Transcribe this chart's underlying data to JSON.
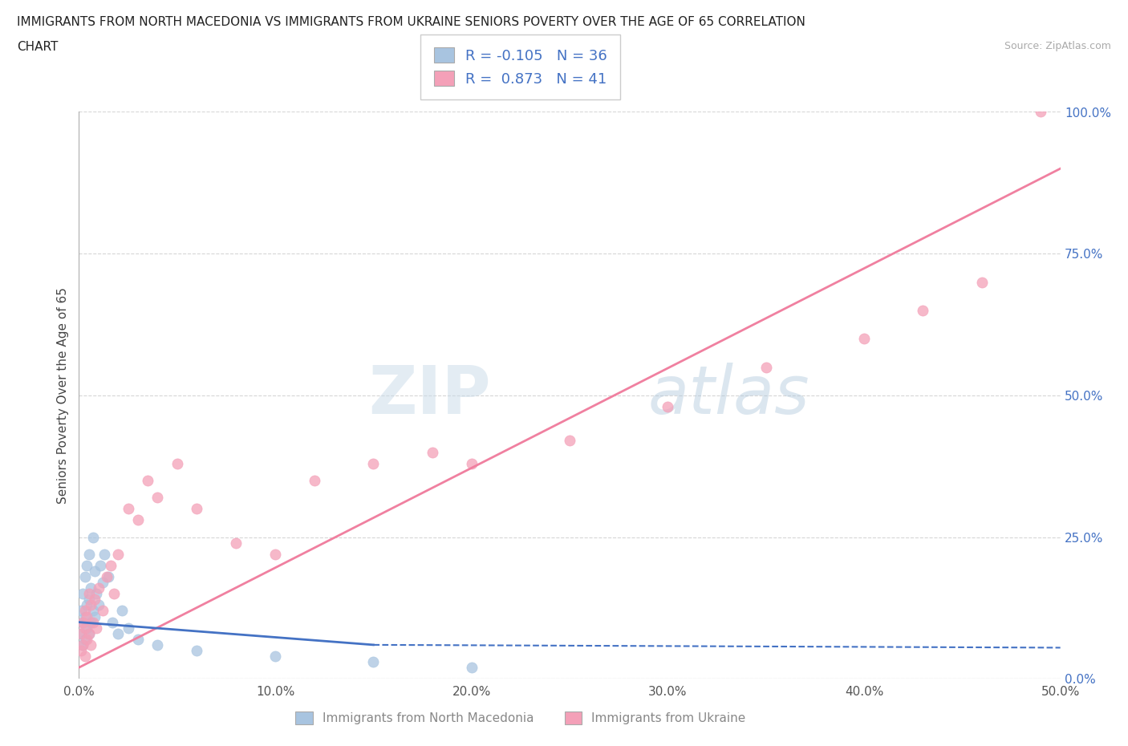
{
  "title_line1": "IMMIGRANTS FROM NORTH MACEDONIA VS IMMIGRANTS FROM UKRAINE SENIORS POVERTY OVER THE AGE OF 65 CORRELATION",
  "title_line2": "CHART",
  "source_text": "Source: ZipAtlas.com",
  "ylabel": "Seniors Poverty Over the Age of 65",
  "xlabel_mac": "Immigrants from North Macedonia",
  "xlabel_ukr": "Immigrants from Ukraine",
  "watermark_zip": "ZIP",
  "watermark_atlas": "atlas",
  "legend_mac_R": "-0.105",
  "legend_mac_N": "36",
  "legend_ukr_R": "0.873",
  "legend_ukr_N": "41",
  "mac_color": "#a8c4e0",
  "ukr_color": "#f4a0b8",
  "mac_line_color": "#4472c4",
  "ukr_line_color": "#f080a0",
  "label_color": "#4472c4",
  "background_color": "#ffffff",
  "grid_color": "#cccccc",
  "xlim": [
    0.0,
    0.5
  ],
  "ylim": [
    0.0,
    1.0
  ],
  "xticks": [
    0.0,
    0.1,
    0.2,
    0.3,
    0.4,
    0.5
  ],
  "yticks": [
    0.0,
    0.25,
    0.5,
    0.75,
    1.0
  ],
  "mac_scatter_x": [
    0.001,
    0.001,
    0.002,
    0.002,
    0.002,
    0.003,
    0.003,
    0.003,
    0.004,
    0.004,
    0.004,
    0.005,
    0.005,
    0.005,
    0.006,
    0.006,
    0.007,
    0.007,
    0.008,
    0.008,
    0.009,
    0.01,
    0.011,
    0.012,
    0.013,
    0.015,
    0.017,
    0.02,
    0.022,
    0.025,
    0.03,
    0.04,
    0.06,
    0.1,
    0.15,
    0.2
  ],
  "mac_scatter_y": [
    0.08,
    0.12,
    0.06,
    0.1,
    0.15,
    0.07,
    0.11,
    0.18,
    0.09,
    0.13,
    0.2,
    0.08,
    0.14,
    0.22,
    0.1,
    0.16,
    0.12,
    0.25,
    0.11,
    0.19,
    0.15,
    0.13,
    0.2,
    0.17,
    0.22,
    0.18,
    0.1,
    0.08,
    0.12,
    0.09,
    0.07,
    0.06,
    0.05,
    0.04,
    0.03,
    0.02
  ],
  "ukr_scatter_x": [
    0.001,
    0.001,
    0.002,
    0.002,
    0.003,
    0.003,
    0.003,
    0.004,
    0.004,
    0.005,
    0.005,
    0.006,
    0.006,
    0.007,
    0.008,
    0.009,
    0.01,
    0.012,
    0.014,
    0.016,
    0.018,
    0.02,
    0.025,
    0.03,
    0.035,
    0.04,
    0.05,
    0.06,
    0.08,
    0.1,
    0.12,
    0.15,
    0.18,
    0.2,
    0.25,
    0.3,
    0.35,
    0.4,
    0.43,
    0.46,
    0.49
  ],
  "ukr_scatter_y": [
    0.05,
    0.08,
    0.06,
    0.1,
    0.04,
    0.09,
    0.12,
    0.07,
    0.11,
    0.08,
    0.15,
    0.06,
    0.13,
    0.1,
    0.14,
    0.09,
    0.16,
    0.12,
    0.18,
    0.2,
    0.15,
    0.22,
    0.3,
    0.28,
    0.35,
    0.32,
    0.38,
    0.3,
    0.24,
    0.22,
    0.35,
    0.38,
    0.4,
    0.38,
    0.42,
    0.48,
    0.55,
    0.6,
    0.65,
    0.7,
    1.0
  ],
  "mac_line_x0": 0.0,
  "mac_line_x1": 0.5,
  "mac_line_y0": 0.1,
  "mac_line_y1": 0.055,
  "ukr_line_x0": 0.0,
  "ukr_line_x1": 0.5,
  "ukr_line_y0": 0.02,
  "ukr_line_y1": 0.9
}
